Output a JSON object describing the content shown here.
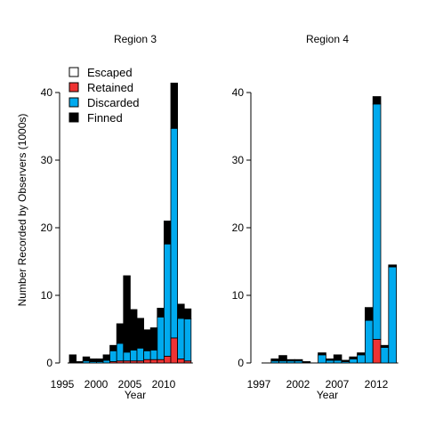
{
  "figure": {
    "ylabel": "Number Recorded by Observers (1000s)",
    "legend": {
      "placement": "top-left",
      "entries": [
        {
          "label": "Escaped",
          "color": "#ffffff"
        },
        {
          "label": "Retained",
          "color": "#ee3333"
        },
        {
          "label": "Discarded",
          "color": "#00aaee"
        },
        {
          "label": "Finned",
          "color": "#000000"
        }
      ]
    }
  },
  "chart_data": [
    {
      "type": "bar",
      "stacked": true,
      "title": "Region 3",
      "xlabel": "Year",
      "ylabel": "Number Recorded by Observers (1000s)",
      "ylim": [
        0,
        41
      ],
      "yticks": [
        0,
        10,
        20,
        30,
        40
      ],
      "xticks": [
        "1995",
        "2000",
        "2005",
        "2010"
      ],
      "categories": [
        "1996",
        "1997",
        "1998",
        "1999",
        "2000",
        "2001",
        "2002",
        "2003",
        "2004",
        "2005",
        "2006",
        "2007",
        "2008",
        "2009",
        "2010",
        "2011",
        "2012",
        "2013"
      ],
      "series": [
        {
          "name": "Escaped",
          "color": "#ffffff",
          "values": [
            0,
            0,
            0,
            0,
            0,
            0,
            0,
            0,
            0,
            0,
            0,
            0,
            0,
            0,
            0,
            0,
            0,
            0
          ]
        },
        {
          "name": "Retained",
          "color": "#ee3333",
          "values": [
            0,
            0,
            0,
            0,
            0,
            0,
            0.2,
            0.3,
            0.3,
            0.3,
            0.3,
            0.5,
            0.5,
            0.5,
            1.0,
            3.7,
            0.6,
            0.3
          ]
        },
        {
          "name": "Discarded",
          "color": "#00aaee",
          "values": [
            0,
            0,
            0.3,
            0.2,
            0.2,
            0.4,
            1.6,
            2.6,
            1.3,
            1.6,
            1.9,
            1.3,
            1.4,
            6.3,
            16.6,
            31.0,
            6.0,
            6.2
          ]
        },
        {
          "name": "Finned",
          "color": "#000000",
          "values": [
            1.2,
            0.2,
            0.6,
            0.4,
            0.4,
            0.8,
            0.8,
            2.9,
            11.3,
            6.0,
            4.4,
            3.1,
            3.3,
            1.3,
            3.4,
            6.7,
            2.1,
            1.5
          ]
        }
      ]
    },
    {
      "type": "bar",
      "stacked": true,
      "title": "Region 4",
      "xlabel": "Year",
      "ylim": [
        0,
        41
      ],
      "yticks": [
        0,
        10,
        20,
        30,
        40
      ],
      "xticks": [
        "1997",
        "2002",
        "2007",
        "2012"
      ],
      "categories": [
        "1997",
        "1998",
        "1999",
        "2000",
        "2001",
        "2002",
        "2003",
        "2004",
        "2005",
        "2006",
        "2007",
        "2008",
        "2009",
        "2010",
        "2011",
        "2012",
        "2013"
      ],
      "series": [
        {
          "name": "Escaped",
          "color": "#ffffff",
          "values": [
            0,
            0,
            0,
            0,
            0,
            0,
            0,
            0,
            0,
            0,
            0,
            0,
            0,
            0,
            0,
            0,
            0
          ]
        },
        {
          "name": "Retained",
          "color": "#ee3333",
          "values": [
            0,
            0,
            0,
            0,
            0,
            0,
            0,
            0,
            0,
            0,
            0,
            0,
            0,
            0,
            3.5,
            0,
            0
          ]
        },
        {
          "name": "Discarded",
          "color": "#00aaee",
          "values": [
            0,
            0.3,
            0.3,
            0.3,
            0.3,
            0,
            0,
            1.2,
            0.4,
            0.4,
            0.2,
            0.6,
            1.2,
            6.3,
            34.8,
            2.3,
            14.2
          ]
        },
        {
          "name": "Finned",
          "color": "#000000",
          "values": [
            0,
            0.3,
            0.8,
            0.2,
            0.2,
            0.2,
            0,
            0.3,
            0.2,
            0.8,
            0.2,
            0.3,
            0.3,
            1.9,
            1.1,
            0.3,
            0.3
          ]
        }
      ]
    }
  ]
}
